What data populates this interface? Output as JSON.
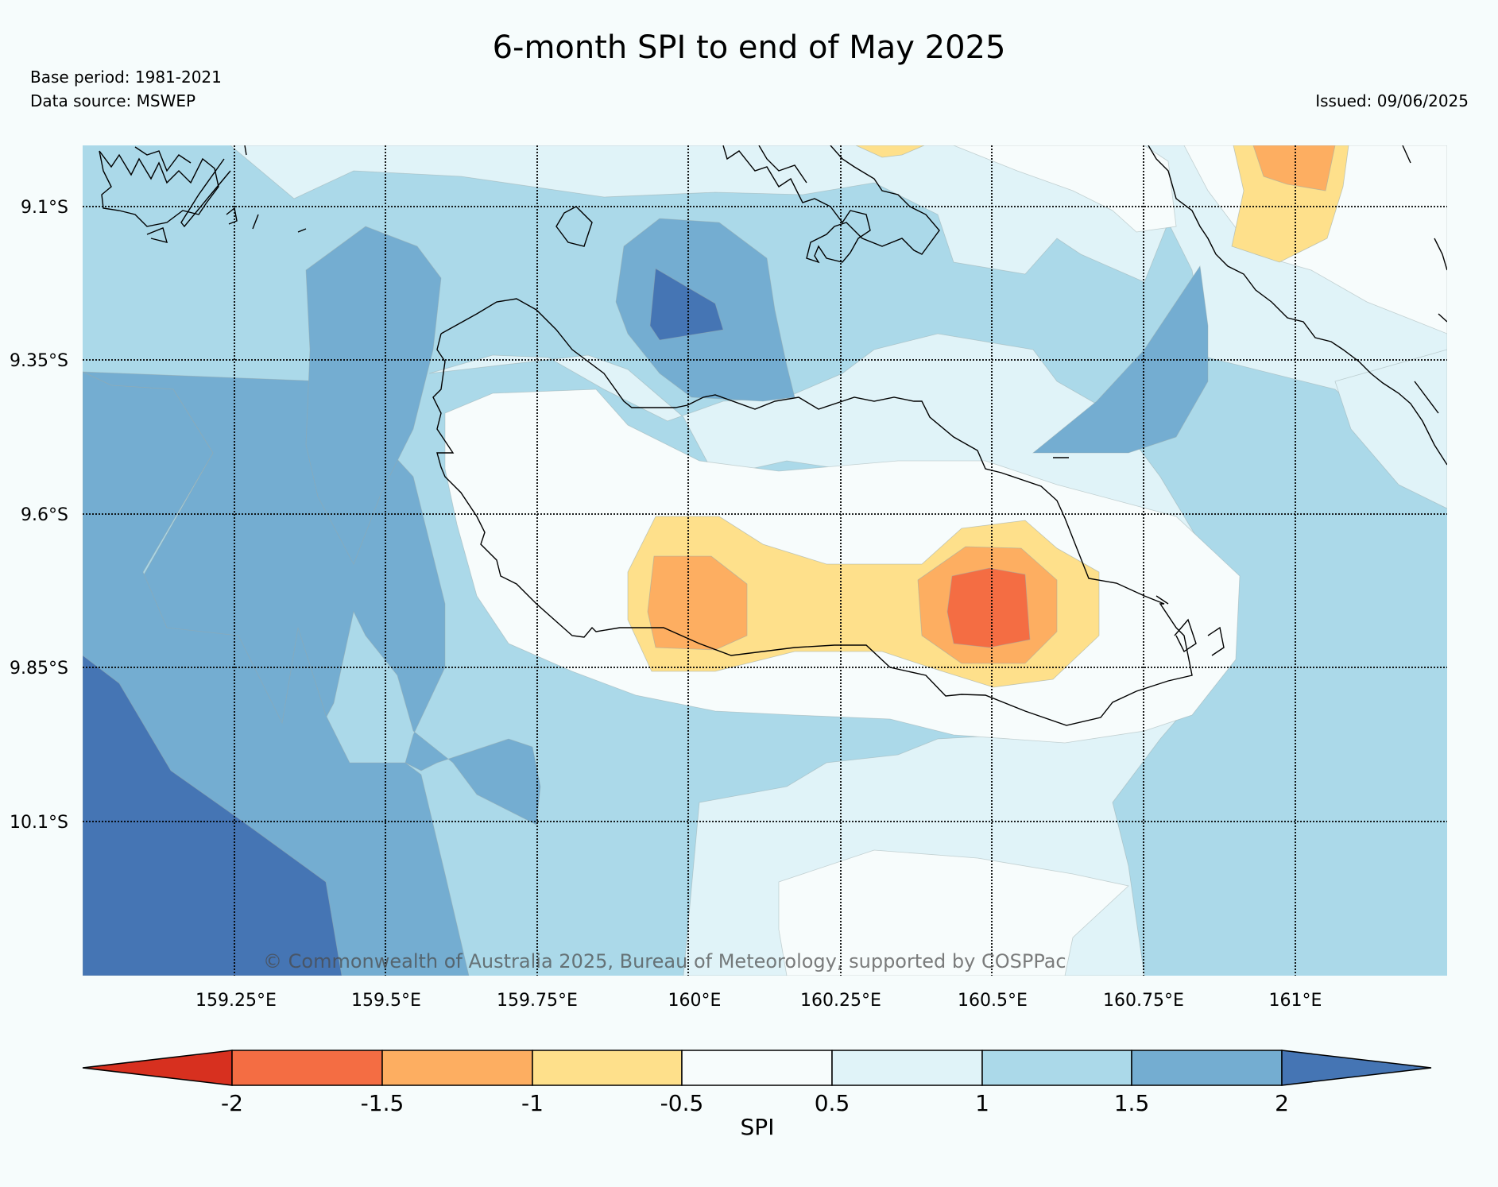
{
  "title": "6-month SPI to end of May 2025",
  "base_period": "Base period: 1981-2021",
  "data_source": "Data source: MSWEP",
  "issued": "Issued: 09/06/2025",
  "copyright": "© Commonwealth of Australia 2025, Bureau of Meteorology, supported by COSPPac",
  "lat_labels": [
    "9.1°S",
    "9.35°S",
    "9.6°S",
    "9.85°S",
    "10.1°S"
  ],
  "lon_labels": [
    "159.25°E",
    "159.5°E",
    "159.75°E",
    "160°E",
    "160.25°E",
    "160.5°E",
    "160.75°E",
    "161°E"
  ],
  "colorbar": {
    "label": "SPI",
    "ticks": [
      "-2",
      "-1.5",
      "-1",
      "-0.5",
      "0.5",
      "1",
      "1.5",
      "2"
    ],
    "colors": [
      "#d7301f",
      "#f46d43",
      "#fdae61",
      "#fee08b",
      "#f7fcfc",
      "#e0f3f8",
      "#abd9e9",
      "#74add1",
      "#4575b4"
    ]
  }
}
